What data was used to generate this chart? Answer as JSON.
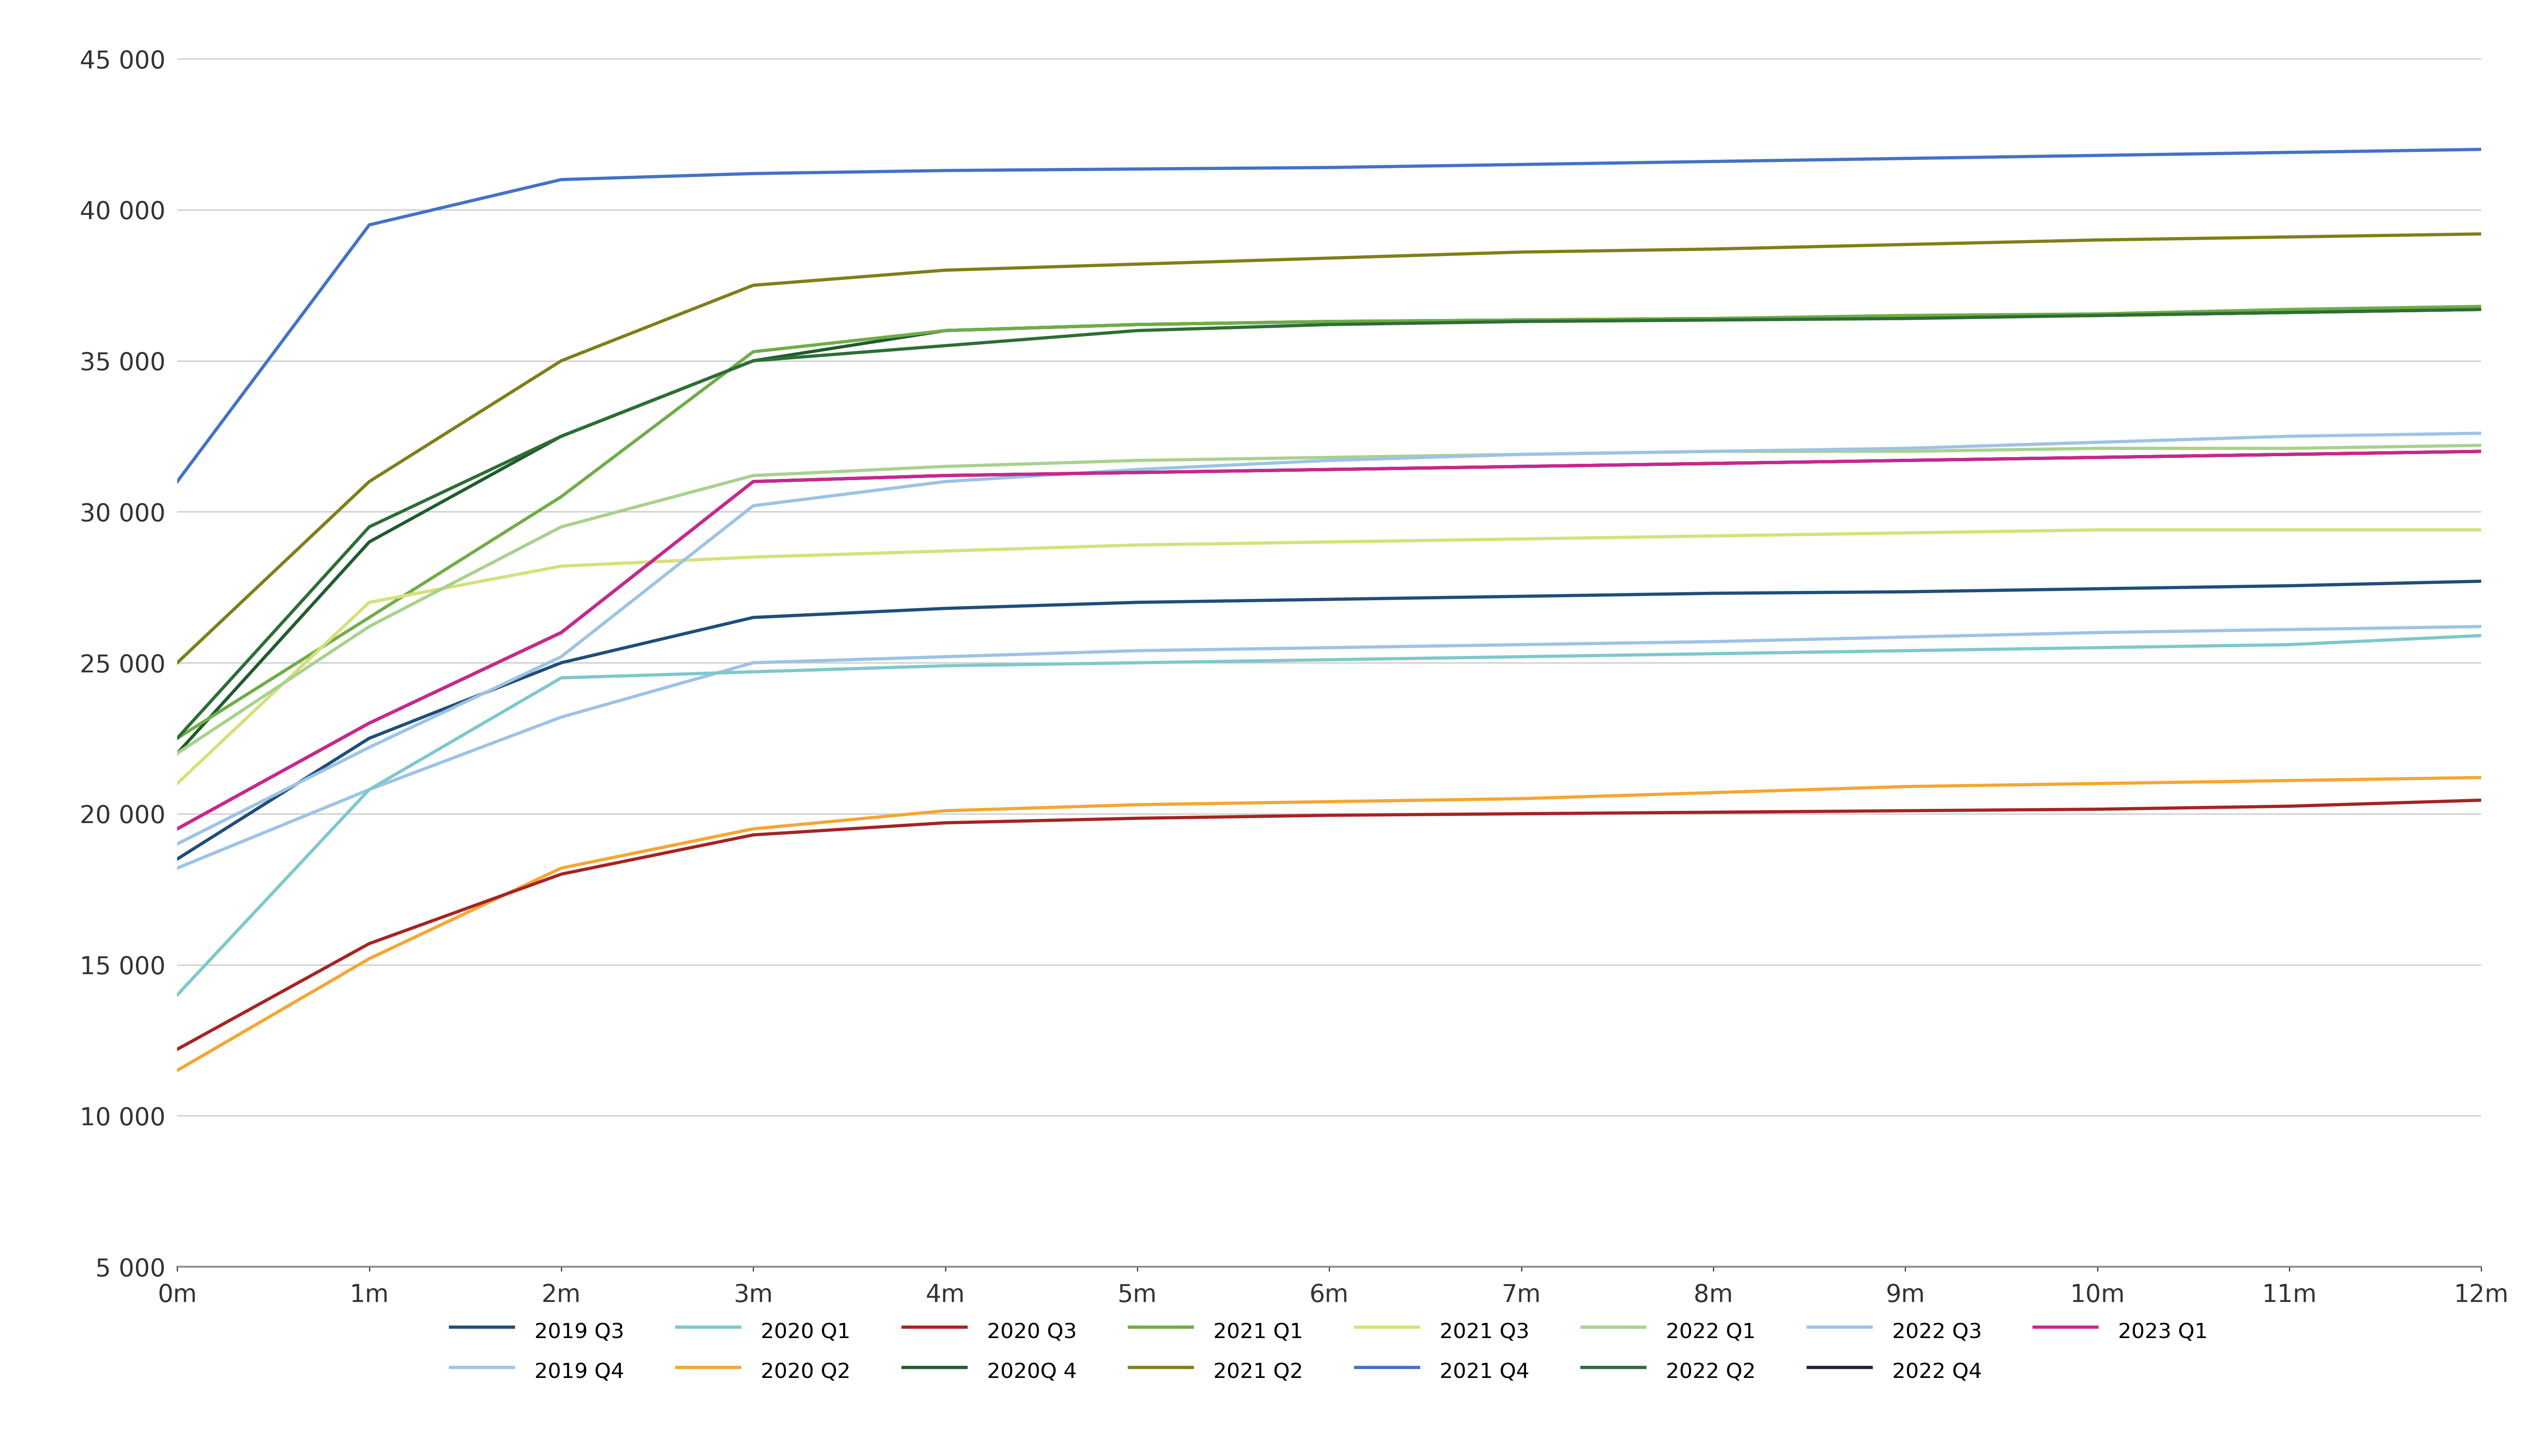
{
  "xlabel_ticks": [
    "0m",
    "1m",
    "2m",
    "3m",
    "4m",
    "5m",
    "6m",
    "7m",
    "8m",
    "9m",
    "10m",
    "11m",
    "12m"
  ],
  "yticks": [
    5000,
    10000,
    15000,
    20000,
    25000,
    30000,
    35000,
    40000,
    45000
  ],
  "ylim": [
    5000,
    45500
  ],
  "xlim": [
    0,
    12
  ],
  "series": [
    {
      "label": "2019 Q3",
      "color": "#1f4e79",
      "values": [
        18500,
        22500,
        25000,
        26500,
        26800,
        27000,
        27100,
        27200,
        27300,
        27350,
        27450,
        27550,
        27700
      ]
    },
    {
      "label": "2019 Q4",
      "color": "#9dc3e6",
      "values": [
        18200,
        20800,
        23200,
        25000,
        25200,
        25400,
        25500,
        25600,
        25700,
        25850,
        26000,
        26100,
        26200
      ]
    },
    {
      "label": "2020 Q1",
      "color": "#7ec8cb",
      "values": [
        14000,
        20800,
        24500,
        24700,
        24900,
        25000,
        25100,
        25200,
        25300,
        25400,
        25500,
        25600,
        25900
      ]
    },
    {
      "label": "2020 Q2",
      "color": "#f4a634",
      "values": [
        11500,
        15200,
        18200,
        19500,
        20100,
        20300,
        20400,
        20500,
        20700,
        20900,
        21000,
        21100,
        21200
      ]
    },
    {
      "label": "2020 Q3",
      "color": "#a52424",
      "values": [
        12200,
        15700,
        18000,
        19300,
        19700,
        19850,
        19950,
        20000,
        20050,
        20100,
        20150,
        20250,
        20450
      ]
    },
    {
      "label": "2020Q 4",
      "color": "#1e5c2e",
      "values": [
        22000,
        29000,
        32500,
        35000,
        36000,
        36200,
        36300,
        36350,
        36400,
        36450,
        36500,
        36600,
        36700
      ]
    },
    {
      "label": "2021 Q1",
      "color": "#70ad47",
      "values": [
        22500,
        26500,
        30500,
        35300,
        36000,
        36200,
        36300,
        36350,
        36400,
        36500,
        36550,
        36700,
        36800
      ]
    },
    {
      "label": "2021 Q2",
      "color": "#7f7f19",
      "values": [
        25000,
        31000,
        35000,
        37500,
        38000,
        38200,
        38400,
        38600,
        38700,
        38850,
        39000,
        39100,
        39200
      ]
    },
    {
      "label": "2021 Q3",
      "color": "#d6e07a",
      "values": [
        21000,
        27000,
        28200,
        28500,
        28700,
        28900,
        29000,
        29100,
        29200,
        29300,
        29400,
        29400,
        29400
      ]
    },
    {
      "label": "2021 Q4",
      "color": "#4472c4",
      "values": [
        31000,
        39500,
        41000,
        41200,
        41300,
        41350,
        41400,
        41500,
        41600,
        41700,
        41800,
        41900,
        42000
      ]
    },
    {
      "label": "2022 Q1",
      "color": "#a9d18e",
      "values": [
        22000,
        26200,
        29500,
        31200,
        31500,
        31700,
        31800,
        31900,
        32000,
        32000,
        32100,
        32100,
        32200
      ]
    },
    {
      "label": "2022 Q2",
      "color": "#2d6e35",
      "values": [
        22500,
        29500,
        32500,
        35000,
        35500,
        36000,
        36200,
        36300,
        36350,
        36400,
        36500,
        36600,
        36700
      ]
    },
    {
      "label": "2022 Q3",
      "color": "#9dc3e6",
      "values": [
        19000,
        22200,
        25200,
        30200,
        31000,
        31400,
        31700,
        31900,
        32000,
        32100,
        32300,
        32500,
        32600
      ]
    },
    {
      "label": "2022 Q4",
      "color": "#1f2040",
      "values": [
        19500,
        23000,
        26000,
        31000,
        31200,
        31300,
        31400,
        31500,
        31600,
        31700,
        31800,
        31900,
        32000
      ]
    },
    {
      "label": "2023 Q1",
      "color": "#c9278e",
      "values": [
        19500,
        23000,
        26000,
        31000,
        31200,
        31300,
        31400,
        31500,
        31600,
        31700,
        31800,
        31900,
        32000
      ]
    }
  ],
  "background_color": "#ffffff",
  "grid_color": "#c8c8c8",
  "axis_color": "#888888",
  "legend_row1": [
    "2019 Q3",
    "2019 Q4",
    "2020 Q1",
    "2020 Q2",
    "2020 Q3",
    "2020Q 4",
    "2021 Q1",
    "2021 Q2"
  ],
  "legend_row2": [
    "2021 Q3",
    "2021 Q4",
    "2022 Q1",
    "2022 Q2",
    "2022 Q3",
    "2022 Q4",
    "2023 Q1"
  ]
}
